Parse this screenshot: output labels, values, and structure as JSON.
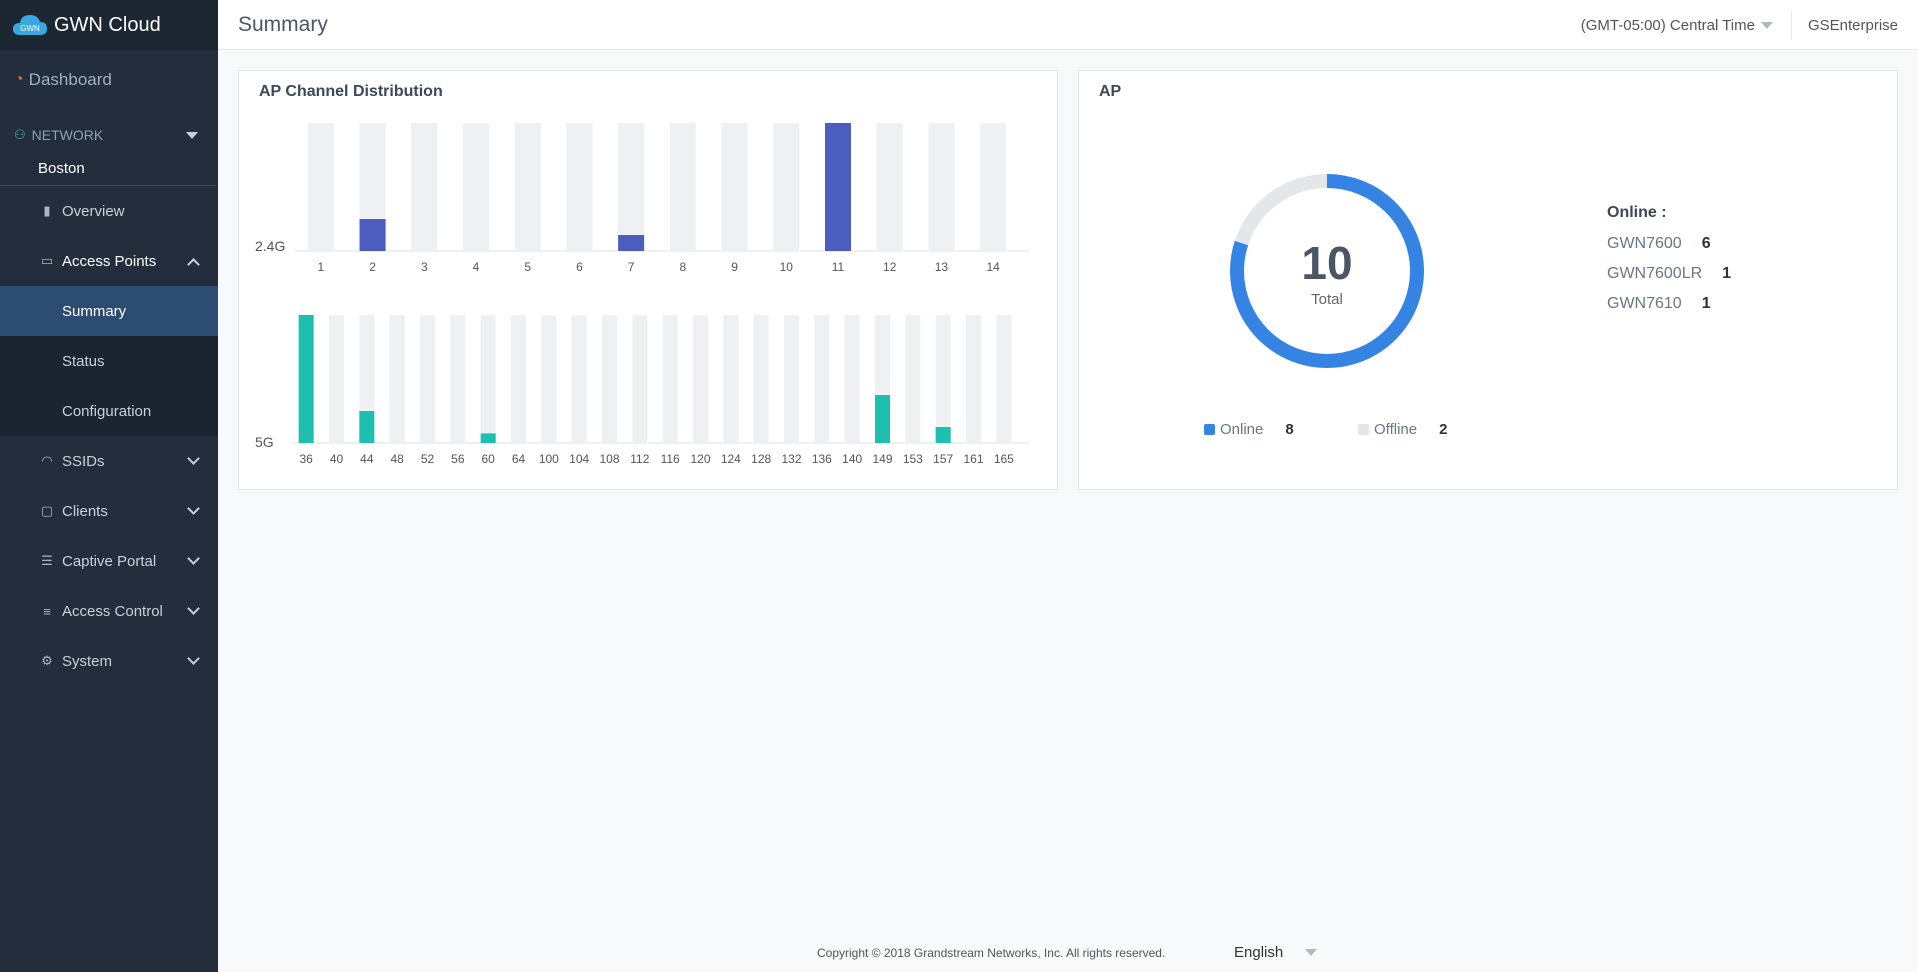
{
  "app": {
    "brand_badge": "GWN",
    "brand": "GWN Cloud"
  },
  "sidebar": {
    "dashboard": "Dashboard",
    "network_label": "NETWORK",
    "site": "Boston",
    "overview": "Overview",
    "access_points": "Access Points",
    "sub_items": [
      "Summary",
      "Status",
      "Configuration"
    ],
    "sections": [
      "SSIDs",
      "Clients",
      "Captive Portal",
      "Access Control",
      "System"
    ]
  },
  "header": {
    "page_title": "Summary",
    "timezone": "(GMT-05:00) Central Time",
    "user": "GSEnterprise"
  },
  "ap_channel": {
    "title": "AP Channel Distribution",
    "band_24_label": "2.4G",
    "band_5_label": "5G"
  },
  "chart_data": [
    {
      "type": "bar",
      "band": "2.4G",
      "categories": [
        "1",
        "2",
        "3",
        "4",
        "5",
        "6",
        "7",
        "8",
        "9",
        "10",
        "11",
        "12",
        "13",
        "14"
      ],
      "values": [
        0,
        2,
        0,
        0,
        0,
        0,
        1,
        0,
        0,
        0,
        8,
        0,
        0,
        0
      ],
      "ylim": [
        0,
        8
      ],
      "color": "#4b5ec0",
      "track_color": "#eef0f3"
    },
    {
      "type": "bar",
      "band": "5G",
      "categories": [
        "36",
        "40",
        "44",
        "48",
        "52",
        "56",
        "60",
        "64",
        "100",
        "104",
        "108",
        "112",
        "116",
        "120",
        "124",
        "128",
        "132",
        "136",
        "140",
        "149",
        "153",
        "157",
        "161",
        "165"
      ],
      "values": [
        8,
        0,
        2,
        0,
        0,
        0,
        0.6,
        0,
        0,
        0,
        0,
        0,
        0,
        0,
        0,
        0,
        0,
        0,
        0,
        3,
        0,
        1,
        0,
        0
      ],
      "ylim": [
        0,
        8
      ],
      "color": "#1dbfaf",
      "track_color": "#eef0f3"
    }
  ],
  "ap_card": {
    "title": "AP",
    "total": "10",
    "total_label": "Total",
    "online_count": 8,
    "offline_count": 2,
    "online_label": "Online",
    "offline_label": "Offline",
    "online_value": "8",
    "offline_value": "2",
    "online_color": "#3584e4",
    "offline_color": "#e4e6ea",
    "online_heading": "Online :",
    "models": [
      {
        "name": "GWN7600",
        "count": "6"
      },
      {
        "name": "GWN7600LR",
        "count": "1"
      },
      {
        "name": "GWN7610",
        "count": "1"
      }
    ]
  },
  "footer": {
    "copyright": "Copyright © 2018 Grandstream Networks, Inc. All rights reserved.",
    "language": "English"
  }
}
